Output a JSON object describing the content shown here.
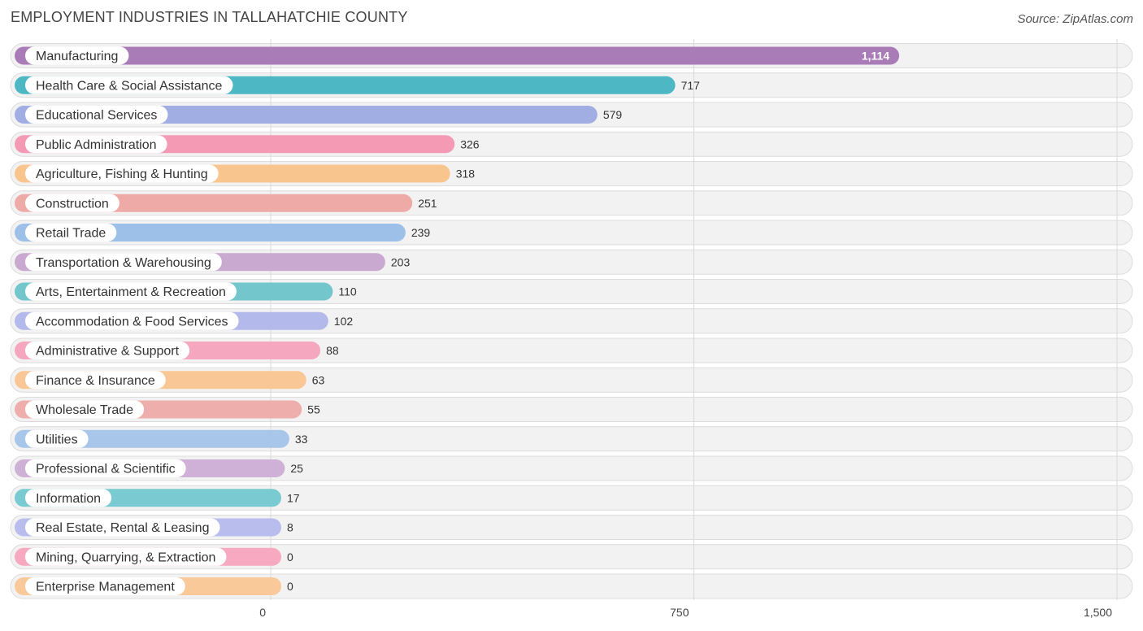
{
  "header": {
    "title": "EMPLOYMENT INDUSTRIES IN TALLAHATCHIE COUNTY",
    "source": "Source: ZipAtlas.com"
  },
  "chart_data": {
    "type": "bar",
    "orientation": "horizontal",
    "title": "EMPLOYMENT INDUSTRIES IN TALLAHATCHIE COUNTY",
    "xlim": [
      0,
      1500
    ],
    "ticks": [
      0,
      750,
      1500
    ],
    "tick_labels": [
      "0",
      "750",
      "1,500"
    ],
    "grid": true,
    "categories": [
      "Manufacturing",
      "Health Care & Social Assistance",
      "Educational Services",
      "Public Administration",
      "Agriculture, Fishing & Hunting",
      "Construction",
      "Retail Trade",
      "Transportation & Warehousing",
      "Arts, Entertainment & Recreation",
      "Accommodation & Food Services",
      "Administrative & Support",
      "Finance & Insurance",
      "Wholesale Trade",
      "Utilities",
      "Professional & Scientific",
      "Information",
      "Real Estate, Rental & Leasing",
      "Mining, Quarrying, & Extraction",
      "Enterprise Management"
    ],
    "values": [
      1114,
      717,
      579,
      326,
      318,
      251,
      239,
      203,
      110,
      102,
      88,
      63,
      55,
      33,
      25,
      17,
      8,
      0,
      0
    ],
    "value_labels": [
      "1,114",
      "717",
      "579",
      "326",
      "318",
      "251",
      "239",
      "203",
      "110",
      "102",
      "88",
      "63",
      "55",
      "33",
      "25",
      "17",
      "8",
      "0",
      "0"
    ],
    "colors": [
      "#a97cb8",
      "#4db8c4",
      "#a0aee4",
      "#f49ab5",
      "#f9c58e",
      "#eeaaa6",
      "#9dc0e8",
      "#c9a9cf",
      "#72c6cc",
      "#b4b9ec",
      "#f6a7c0",
      "#f9c795",
      "#eeaeab",
      "#a8c5ea",
      "#cfb0d6",
      "#7acbd1",
      "#b8bdee",
      "#f7a9c1",
      "#f9c99a"
    ]
  }
}
